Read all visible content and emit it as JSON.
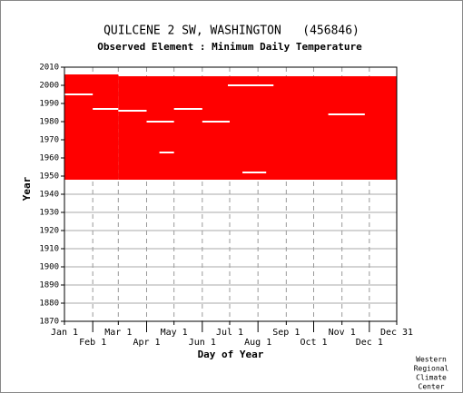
{
  "chart_data": {
    "type": "coverage",
    "title": "QUILCENE 2 SW, WASHINGTON   (456846)",
    "subtitle": "Observed Element : Minimum Daily Temperature",
    "xlabel": "Day of Year",
    "ylabel": "Year",
    "color": "#ff0000",
    "xlim": [
      1,
      365
    ],
    "ylim": [
      1870,
      2010
    ],
    "xticks": [
      {
        "value": 1,
        "label": "Jan 1"
      },
      {
        "value": 32,
        "label": "Feb 1"
      },
      {
        "value": 60,
        "label": "Mar 1"
      },
      {
        "value": 91,
        "label": "Apr 1"
      },
      {
        "value": 121,
        "label": "May 1"
      },
      {
        "value": 152,
        "label": "Jun 1"
      },
      {
        "value": 182,
        "label": "Jul 1"
      },
      {
        "value": 213,
        "label": "Aug 1"
      },
      {
        "value": 244,
        "label": "Sep 1"
      },
      {
        "value": 274,
        "label": "Oct 1"
      },
      {
        "value": 305,
        "label": "Nov 1"
      },
      {
        "value": 335,
        "label": "Dec 1"
      },
      {
        "value": 365,
        "label": "Dec 31"
      }
    ],
    "yticks": [
      1870,
      1880,
      1890,
      1900,
      1910,
      1920,
      1930,
      1940,
      1950,
      1960,
      1970,
      1980,
      1990,
      2000,
      2010
    ],
    "blocks": [
      {
        "days": [
          1,
          60
        ],
        "years": [
          1948,
          2006
        ]
      },
      {
        "days": [
          60,
          365
        ],
        "years": [
          1948,
          2005
        ]
      }
    ],
    "gaps": [
      {
        "days": [
          1,
          32
        ],
        "year": 1995
      },
      {
        "days": [
          32,
          60
        ],
        "year": 1987
      },
      {
        "days": [
          60,
          91
        ],
        "year": 1986
      },
      {
        "days": [
          91,
          121
        ],
        "year": 1980
      },
      {
        "days": [
          121,
          152
        ],
        "year": 1987
      },
      {
        "days": [
          152,
          182
        ],
        "year": 1980
      },
      {
        "days": [
          105,
          121
        ],
        "year": 1963
      },
      {
        "days": [
          196,
          222
        ],
        "year": 1952
      },
      {
        "days": [
          180,
          230
        ],
        "year": 2000
      },
      {
        "days": [
          290,
          330
        ],
        "year": 1984
      }
    ],
    "credit": [
      "Western",
      "Regional",
      "Climate",
      "Center"
    ]
  }
}
